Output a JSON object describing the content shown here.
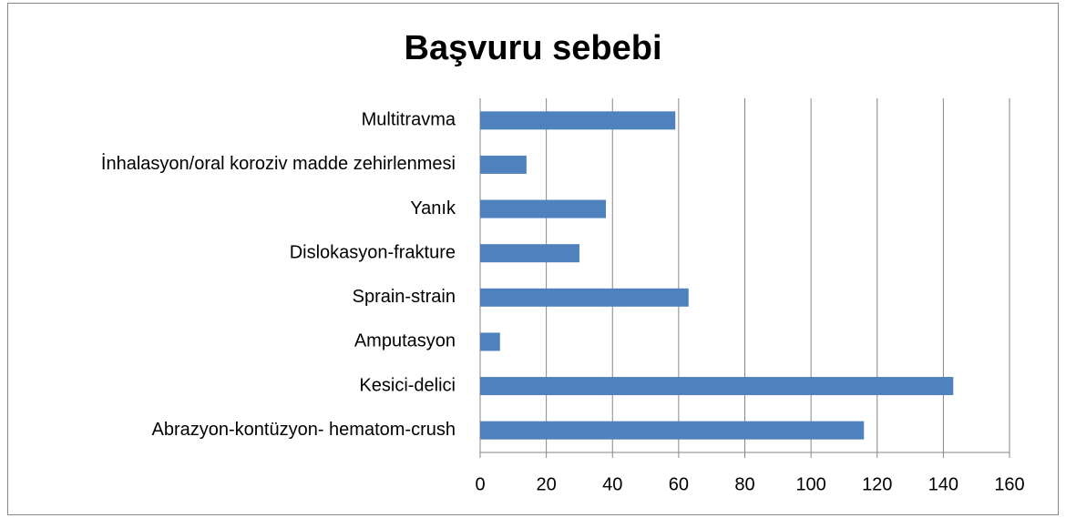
{
  "chart_data": {
    "type": "bar",
    "orientation": "horizontal",
    "title": "Başvuru sebebi",
    "categories": [
      "Multitravma",
      "İnhalasyon/oral koroziv madde zehirlenmesi",
      "Yanık",
      "Dislokasyon-frakture",
      "Sprain-strain",
      "Amputasyon",
      "Kesici-delici",
      "Abrazyon-kontüzyon- hematom-crush"
    ],
    "values": [
      59,
      14,
      38,
      30,
      63,
      6,
      143,
      116
    ],
    "color": "#4f81bd",
    "xlim": [
      0,
      160
    ],
    "xticks": [
      0,
      20,
      40,
      60,
      80,
      100,
      120,
      140,
      160
    ],
    "grid": true
  }
}
